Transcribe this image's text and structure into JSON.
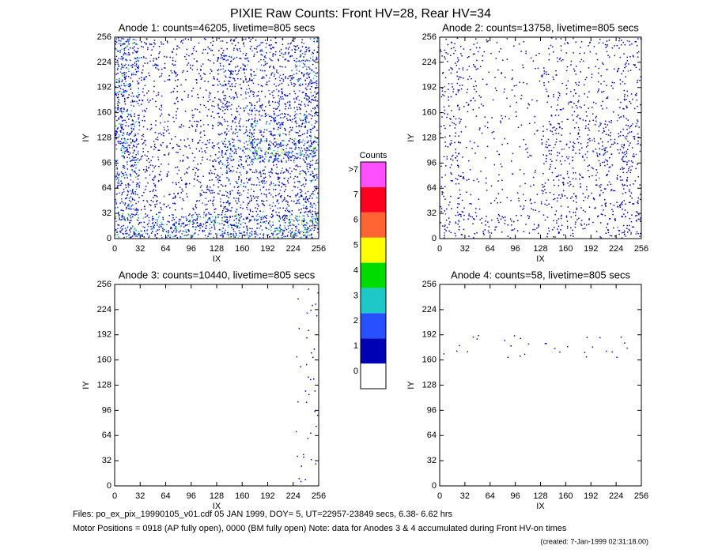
{
  "title": "PIXIE Raw Counts:  Front HV=28, Rear HV=34",
  "chart_data": [
    {
      "type": "heatmap",
      "title": "Anode 1: counts=46205, livetime=805 secs",
      "xlabel": "IX",
      "ylabel": "IY",
      "xlim": [
        0,
        256
      ],
      "ylim": [
        0,
        256
      ],
      "xticks": [
        0,
        32,
        64,
        96,
        128,
        160,
        192,
        224,
        256
      ],
      "yticks": [
        0,
        32,
        64,
        96,
        128,
        160,
        192,
        224,
        256
      ],
      "xbins": [
        0,
        32,
        64,
        96,
        128,
        160,
        192,
        224,
        256
      ],
      "ybins": [
        0,
        32,
        64,
        96,
        128,
        160,
        192,
        224,
        256
      ],
      "values": [
        [
          1.2,
          0.9,
          1.0,
          1.0,
          1.2,
          1.0,
          1.2,
          1.4
        ],
        [
          0.8,
          0.4,
          0.3,
          0.5,
          0.7,
          0.6,
          0.6,
          0.9
        ],
        [
          0.9,
          0.4,
          0.3,
          0.4,
          0.7,
          0.6,
          0.6,
          0.8
        ],
        [
          1.1,
          0.4,
          0.3,
          0.4,
          0.9,
          1.2,
          1.4,
          1.3
        ],
        [
          1.0,
          0.3,
          0.2,
          0.3,
          0.6,
          0.7,
          0.9,
          0.9
        ],
        [
          0.9,
          0.3,
          0.2,
          0.3,
          0.6,
          0.6,
          0.6,
          0.8
        ],
        [
          1.0,
          0.4,
          0.3,
          0.3,
          0.7,
          0.6,
          0.5,
          0.8
        ],
        [
          1.0,
          0.4,
          0.3,
          0.3,
          0.6,
          0.6,
          0.6,
          0.8
        ]
      ]
    },
    {
      "type": "heatmap",
      "title": "Anode 2: counts=13758, livetime=805 secs",
      "xlabel": "IX",
      "ylabel": "IY",
      "xlim": [
        0,
        256
      ],
      "ylim": [
        0,
        256
      ],
      "xticks": [
        0,
        32,
        64,
        96,
        128,
        160,
        192,
        224,
        256
      ],
      "yticks": [
        0,
        32,
        64,
        96,
        128,
        160,
        192,
        224,
        256
      ],
      "xbins": [
        0,
        32,
        64,
        96,
        128,
        160,
        192,
        224,
        256
      ],
      "ybins": [
        0,
        32,
        64,
        96,
        128,
        160,
        192,
        224,
        256
      ],
      "values": [
        [
          0.4,
          0.3,
          0.3,
          0.2,
          0.3,
          0.3,
          0.3,
          0.5
        ],
        [
          0.3,
          0.1,
          0.1,
          0.2,
          0.3,
          0.3,
          0.3,
          0.4
        ],
        [
          0.3,
          0.1,
          0.1,
          0.1,
          0.3,
          0.3,
          0.3,
          0.4
        ],
        [
          0.3,
          0.1,
          0.1,
          0.1,
          0.4,
          0.4,
          0.5,
          0.5
        ],
        [
          0.3,
          0.1,
          0.1,
          0.1,
          0.3,
          0.3,
          0.3,
          0.4
        ],
        [
          0.3,
          0.2,
          0.1,
          0.1,
          0.2,
          0.3,
          0.2,
          0.3
        ],
        [
          0.3,
          0.2,
          0.1,
          0.1,
          0.2,
          0.2,
          0.2,
          0.3
        ],
        [
          0.3,
          0.2,
          0.1,
          0.1,
          0.2,
          0.2,
          0.2,
          0.3
        ]
      ]
    },
    {
      "type": "heatmap",
      "title": "Anode 3: counts=10440, livetime=805 secs",
      "xlabel": "IX",
      "ylabel": "IY",
      "xlim": [
        0,
        256
      ],
      "ylim": [
        0,
        256
      ],
      "xticks": [
        0,
        32,
        64,
        96,
        128,
        160,
        192,
        224,
        256
      ],
      "yticks": [
        0,
        32,
        64,
        96,
        128,
        160,
        192,
        224,
        256
      ],
      "xbins": [
        0,
        32,
        64,
        96,
        128,
        160,
        192,
        224,
        256
      ],
      "ybins": [
        0,
        32,
        64,
        96,
        128,
        160,
        192,
        224,
        256
      ],
      "values": [
        [
          0,
          0,
          0,
          0,
          0,
          0,
          0,
          0.05
        ],
        [
          0,
          0,
          0,
          0,
          0,
          0,
          0,
          0.05
        ],
        [
          0,
          0,
          0,
          0,
          0,
          0,
          0,
          0.05
        ],
        [
          0,
          0,
          0,
          0,
          0,
          0,
          0,
          0.05
        ],
        [
          0,
          0,
          0,
          0,
          0,
          0,
          0,
          0.05
        ],
        [
          0,
          0,
          0,
          0,
          0,
          0,
          0,
          0.05
        ],
        [
          0,
          0,
          0,
          0,
          0,
          0,
          0,
          0.05
        ],
        [
          0,
          0,
          0,
          0,
          0,
          0,
          0,
          0.05
        ]
      ]
    },
    {
      "type": "heatmap",
      "title": "Anode 4: counts=58, livetime=805 secs",
      "xlabel": "IX",
      "ylabel": "IY",
      "xlim": [
        0,
        256
      ],
      "ylim": [
        0,
        256
      ],
      "xticks": [
        0,
        32,
        64,
        96,
        128,
        160,
        192,
        224,
        256
      ],
      "yticks": [
        0,
        32,
        64,
        96,
        128,
        160,
        192,
        224,
        256
      ],
      "xbins": [
        0,
        32,
        64,
        96,
        128,
        160,
        192,
        224,
        256
      ],
      "ybins": [
        0,
        32,
        64,
        96,
        128,
        160,
        192,
        224,
        256
      ],
      "values": [
        [
          0,
          0,
          0,
          0,
          0,
          0,
          0,
          0
        ],
        [
          0,
          0,
          0,
          0,
          0,
          0,
          0,
          0
        ],
        [
          0,
          0,
          0,
          0,
          0,
          0,
          0,
          0
        ],
        [
          0,
          0,
          0,
          0,
          0,
          0,
          0,
          0
        ],
        [
          0,
          0,
          0,
          0,
          0,
          0,
          0,
          0
        ],
        [
          0.03,
          0.04,
          0.04,
          0.04,
          0.04,
          0.04,
          0.04,
          0.04
        ],
        [
          0,
          0,
          0,
          0,
          0,
          0,
          0,
          0
        ],
        [
          0,
          0,
          0,
          0,
          0,
          0,
          0,
          0
        ]
      ]
    }
  ],
  "colorbar": {
    "title": "Counts",
    "labels": [
      "0",
      "1",
      "2",
      "3",
      "4",
      "5",
      "6",
      "7",
      ">7"
    ],
    "colors": [
      "#ffffff",
      "#0000b4",
      "#2850ff",
      "#1ec8c8",
      "#00dc00",
      "#ffff00",
      "#ff6432",
      "#ff0020",
      "#ff50ff"
    ]
  },
  "footer": [
    "Files: po_ex_pix_19990105_v01.cdf   05 JAN 1999, DOY=  5, UT=22957-23849 secs, 6.38- 6.62 hrs",
    "Motor Positions = 0918 (AP fully open), 0000 (BM fully open)    Note: data for Anodes 3 & 4 accumulated during Front HV-on times",
    "(created:  7-Jan-1999 02:31:18.00)"
  ]
}
